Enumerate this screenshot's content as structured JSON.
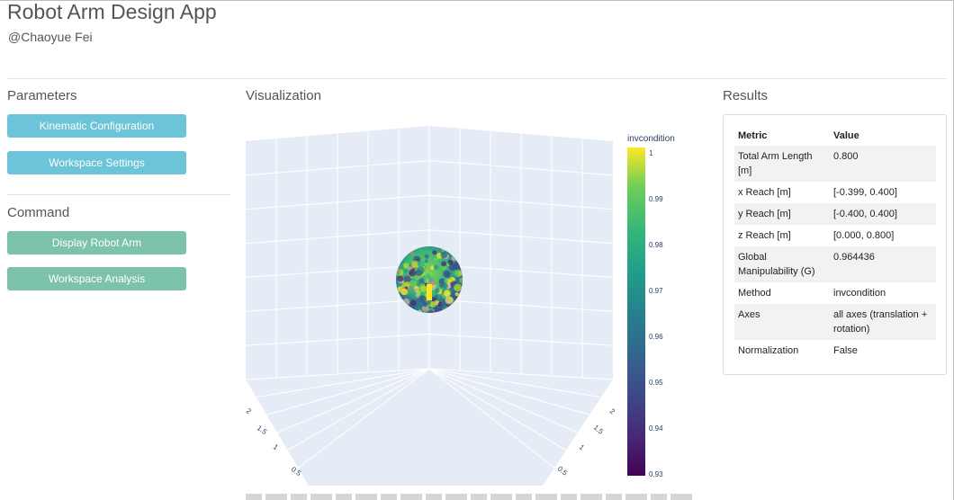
{
  "app": {
    "title": "Robot Arm Design App",
    "author": "@Chaoyue Fei"
  },
  "parameters": {
    "title": "Parameters",
    "buttons": {
      "kinematic": "Kinematic Configuration",
      "workspace": "Workspace Settings"
    }
  },
  "command": {
    "title": "Command",
    "buttons": {
      "display": "Display Robot Arm",
      "analysis": "Workspace Analysis"
    }
  },
  "visualization": {
    "title": "Visualization",
    "colorbar": {
      "title": "invcondition",
      "ticks": [
        "1",
        "0.99",
        "0.98",
        "0.97",
        "0.96",
        "0.95",
        "0.94",
        "0.93"
      ]
    },
    "axis_left_ticks": [
      "2",
      "1.5",
      "1",
      "0.5"
    ],
    "axis_right_ticks": [
      "2",
      "1.5",
      "1",
      "0.5"
    ]
  },
  "results": {
    "title": "Results",
    "headers": {
      "metric": "Metric",
      "value": "Value"
    },
    "rows": [
      {
        "metric": "Total Arm Length [m]",
        "value": "0.800"
      },
      {
        "metric": "x Reach [m]",
        "value": "[-0.399, 0.400]"
      },
      {
        "metric": "y Reach [m]",
        "value": "[-0.400, 0.400]"
      },
      {
        "metric": "z Reach [m]",
        "value": "[0.000, 0.800]"
      },
      {
        "metric": "Global Manipulability (G)",
        "value": "0.964436"
      },
      {
        "metric": "Method",
        "value": "invcondition"
      },
      {
        "metric": "Axes",
        "value": "all axes (translation + rotation)"
      },
      {
        "metric": "Normalization",
        "value": "False"
      }
    ]
  },
  "colors": {
    "button_blue": "#6cc4d8",
    "button_green": "#7dc3aa",
    "plot_pane": "#e5ecf6"
  }
}
